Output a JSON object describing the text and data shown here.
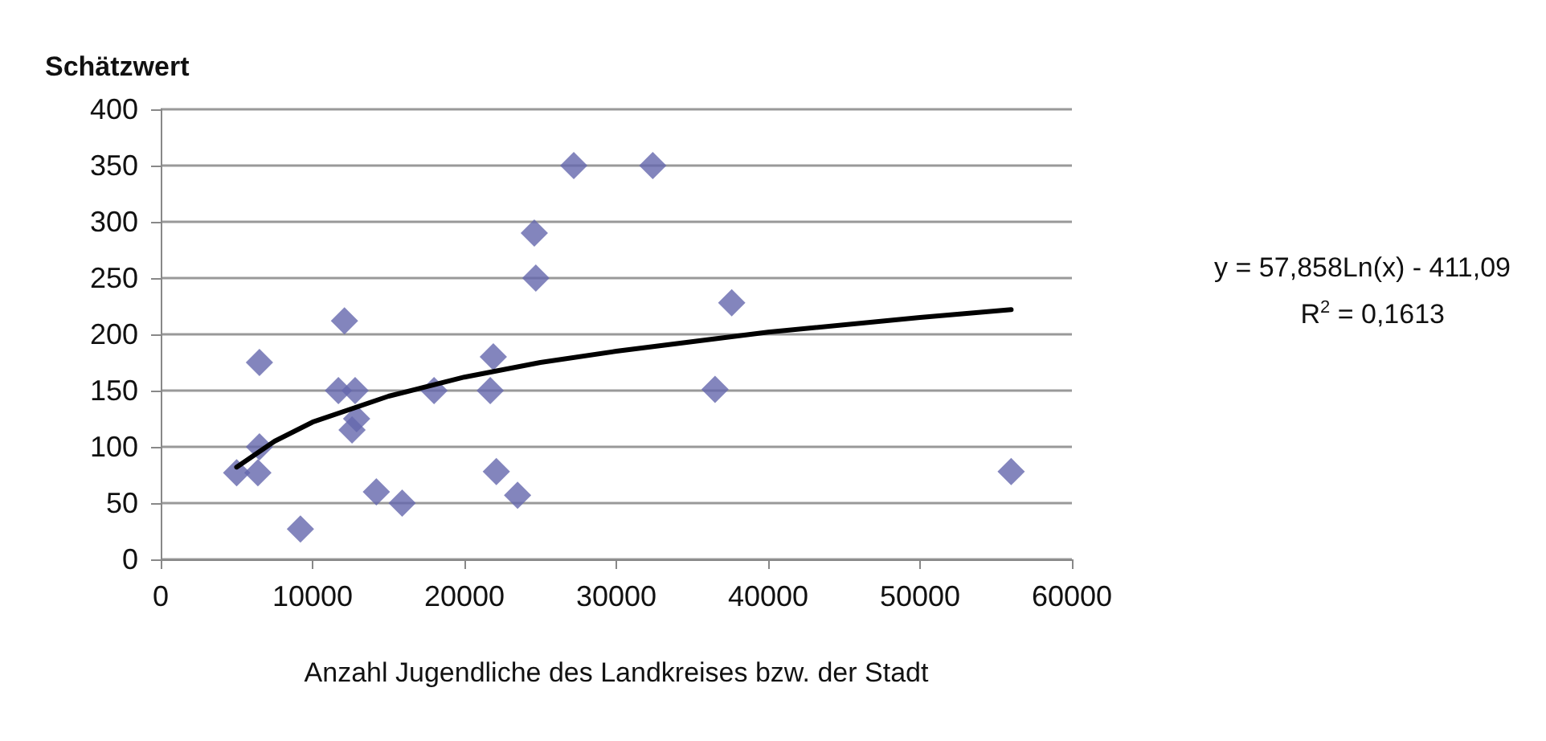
{
  "chart_data": {
    "type": "scatter",
    "ylabel": "Schätzwert",
    "xlabel": "Anzahl Jugendliche des Landkreises bzw. der Stadt",
    "xlim": [
      0,
      60000
    ],
    "xticks": [
      0,
      10000,
      20000,
      30000,
      40000,
      50000,
      60000
    ],
    "ylim": [
      0,
      400
    ],
    "yticks": [
      0,
      50,
      100,
      150,
      200,
      250,
      300,
      350,
      400
    ],
    "grid": "y",
    "marker": "diamond",
    "annotations": [
      "y = 57,858Ln(x) - 411,09",
      "R$^{2}$ = 0,1613"
    ],
    "series": [
      {
        "color": "#6466ac",
        "x": [
          5000,
          6400,
          6500,
          6500,
          9200,
          12100,
          11700,
          12800,
          12900,
          12600,
          14200,
          15900,
          18000,
          21700,
          21900,
          22100,
          23500,
          24700,
          24600,
          27200,
          32400,
          36500,
          37600,
          56000
        ],
        "values": [
          77,
          77,
          100,
          175,
          27,
          212,
          150,
          150,
          125,
          115,
          60,
          50,
          150,
          150,
          180,
          78,
          57,
          250,
          290,
          350,
          350,
          151,
          228,
          78
        ]
      },
      {
        "type": "line",
        "color": "#000000",
        "marker": "none",
        "x": [
          5000,
          7500,
          10000,
          15000,
          20000,
          25000,
          30000,
          40000,
          50000,
          56000
        ],
        "values": [
          82,
          105,
          122,
          145,
          162,
          175,
          185,
          202,
          215,
          222
        ]
      }
    ]
  }
}
